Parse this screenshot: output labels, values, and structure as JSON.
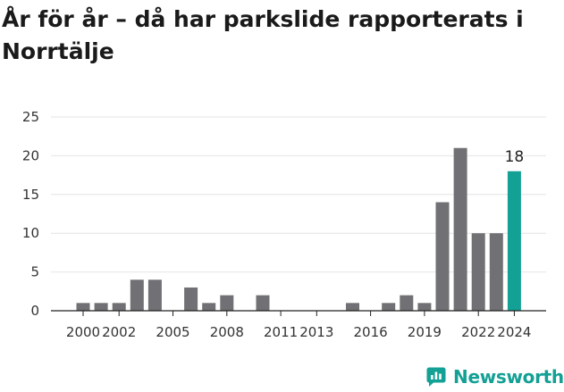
{
  "header": {
    "title": "År för år – då har parkslide rapporterats i Norrtälje"
  },
  "brand": {
    "name": "Newsworthy",
    "icon": "newsworthy-logo-icon",
    "color": "#13a095"
  },
  "chart_data": {
    "type": "bar",
    "title": "År för år – då har parkslide rapporterats i Norrtälje",
    "xlabel": "",
    "ylabel": "",
    "x": [
      2000,
      2001,
      2002,
      2003,
      2004,
      2005,
      2006,
      2007,
      2008,
      2009,
      2010,
      2011,
      2012,
      2013,
      2014,
      2015,
      2016,
      2017,
      2018,
      2019,
      2020,
      2021,
      2022,
      2023,
      2024
    ],
    "values": [
      1,
      1,
      1,
      4,
      4,
      0,
      3,
      1,
      2,
      0,
      2,
      0,
      0,
      0,
      0,
      1,
      0,
      1,
      2,
      1,
      14,
      21,
      10,
      10,
      18
    ],
    "ylim": [
      0,
      25
    ],
    "yticks": [
      "0",
      "5",
      "10",
      "15",
      "20",
      "25"
    ],
    "xticks": [
      {
        "year": 2000,
        "label": "2000"
      },
      {
        "year": 2002,
        "label": "2002"
      },
      {
        "year": 2005,
        "label": "2005"
      },
      {
        "year": 2008,
        "label": "2008"
      },
      {
        "year": 2011,
        "label": "2011"
      },
      {
        "year": 2013,
        "label": "2013"
      },
      {
        "year": 2016,
        "label": "2016"
      },
      {
        "year": 2019,
        "label": "2019"
      },
      {
        "year": 2022,
        "label": "2022"
      },
      {
        "year": 2024,
        "label": "2024"
      }
    ],
    "data_labels": [
      {
        "year": 2024,
        "label": "18"
      }
    ],
    "grid": true,
    "legend": "none",
    "colors": {
      "bar": "#717175",
      "highlight": "#13a095",
      "grid": "#e4e4e4",
      "axis": "#222222"
    },
    "highlight_year": 2024
  }
}
